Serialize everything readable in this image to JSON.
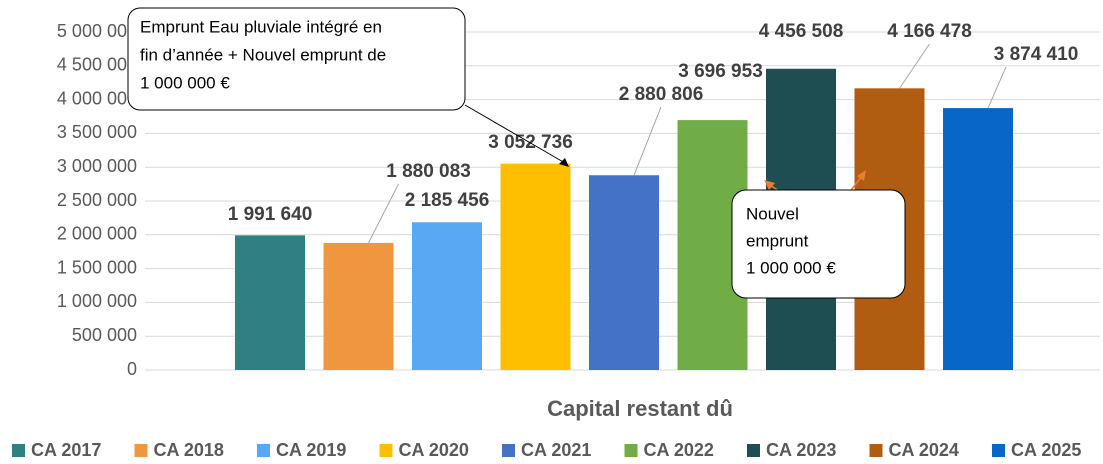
{
  "chart_data": {
    "type": "bar",
    "categories": [
      null
    ],
    "x_label": "Capital restant dû",
    "series": [
      {
        "name": "CA 2017",
        "color": "#2e8082",
        "values": [
          1991640
        ],
        "value_labels": [
          "1 991 640"
        ]
      },
      {
        "name": "CA 2018",
        "color": "#f0963f",
        "values": [
          1880083
        ],
        "value_labels": [
          "1 880 083"
        ]
      },
      {
        "name": "CA 2019",
        "color": "#58a8f3",
        "values": [
          2185456
        ],
        "value_labels": [
          "2 185 456"
        ]
      },
      {
        "name": "CA 2020",
        "color": "#fdbf00",
        "values": [
          3052736
        ],
        "value_labels": [
          "3 052 736"
        ]
      },
      {
        "name": "CA 2021",
        "color": "#4472c4",
        "values": [
          2880806
        ],
        "value_labels": [
          "2 880 806"
        ]
      },
      {
        "name": "CA 2022",
        "color": "#70ad47",
        "values": [
          3696953
        ],
        "value_labels": [
          "3 696 953"
        ]
      },
      {
        "name": "CA 2023",
        "color": "#1e4e52",
        "values": [
          4456508
        ],
        "value_labels": [
          "4 456 508"
        ]
      },
      {
        "name": "CA 2024",
        "color": "#b05c11",
        "values": [
          4166478
        ],
        "value_labels": [
          "4 166 478"
        ]
      },
      {
        "name": "CA 2025",
        "color": "#0866c8",
        "values": [
          3874410
        ],
        "value_labels": [
          "3 874 410"
        ]
      }
    ],
    "ylim": [
      0,
      5000000
    ],
    "yticks": [
      0,
      {
        "value": 500000,
        "label": "500 000"
      },
      {
        "value": 1000000,
        "label": "1 000 000"
      },
      {
        "value": 1500000,
        "label": "1 500 000"
      },
      {
        "value": 2000000,
        "label": "2 000 000"
      },
      {
        "value": 2500000,
        "label": "2 500 000"
      },
      {
        "value": 3000000,
        "label": "3 000 000"
      },
      {
        "value": 3500000,
        "label": "3 500 000"
      },
      {
        "value": 4000000,
        "label": "4 000 000"
      },
      {
        "value": 4500000,
        "label": "4 500 000"
      },
      {
        "value": 5000000,
        "label": "5 000 000"
      }
    ],
    "grid": true,
    "legend": "bottom",
    "annotations": [
      [
        "Emprunt Eau pluviale intégré en",
        "fin d’année + Nouvel emprunt de",
        "1 000 000 €"
      ],
      [
        "Nouvel",
        "emprunt",
        "1 000 000 €"
      ]
    ]
  }
}
